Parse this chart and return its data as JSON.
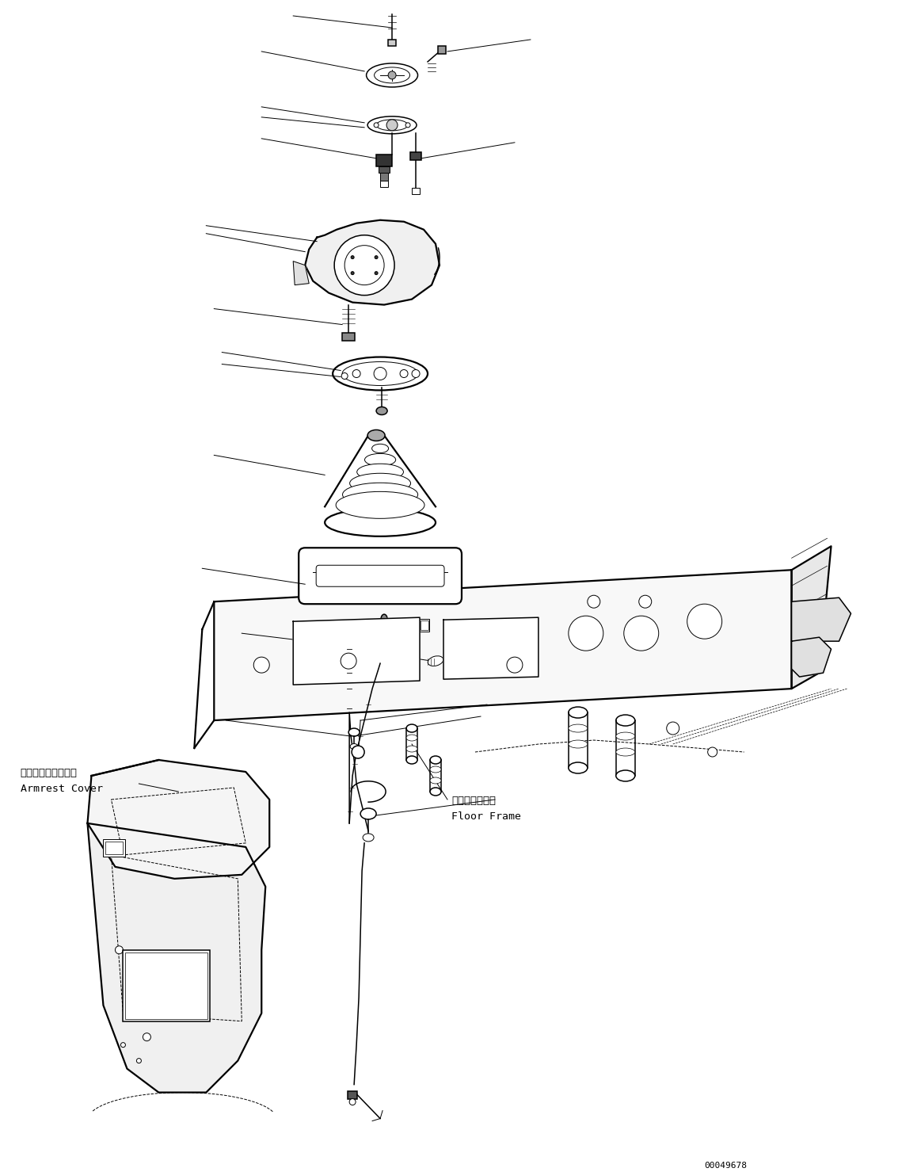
{
  "bg_color": "#ffffff",
  "line_color": "#000000",
  "fig_width": 11.39,
  "fig_height": 14.79,
  "dpi": 100,
  "part_id": "00049678",
  "label_armrest_jp": "アームレストカバー",
  "label_armrest_en": "Armrest Cover",
  "label_floor_jp": "フロアフレーム",
  "label_floor_en": "Floor Frame"
}
